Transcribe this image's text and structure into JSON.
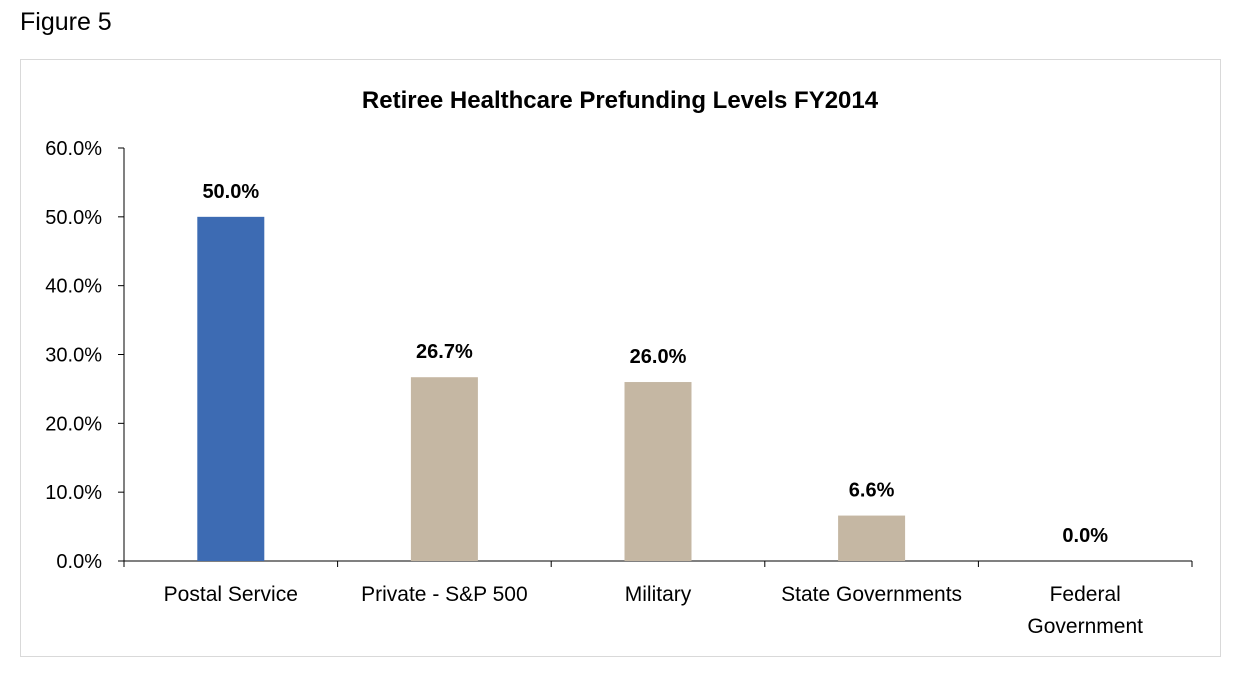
{
  "figure_label": "Figure 5",
  "chart_data": {
    "type": "bar",
    "title": "Retiree Healthcare Prefunding Levels FY2014",
    "xlabel": "",
    "ylabel": "",
    "categories": [
      [
        "Postal Service"
      ],
      [
        "Private - S&P 500"
      ],
      [
        "Military"
      ],
      [
        "State Governments"
      ],
      [
        "Federal",
        "Government"
      ]
    ],
    "values": [
      50.0,
      26.7,
      26.0,
      6.6,
      0.0
    ],
    "data_labels": [
      "50.0%",
      "26.7%",
      "26.0%",
      "6.6%",
      "0.0%"
    ],
    "colors": [
      "#3d6bb3",
      "#c5b7a3",
      "#c5b7a3",
      "#c5b7a3",
      "#c5b7a3"
    ],
    "ylim": [
      0,
      60
    ],
    "yticks": [
      0,
      10,
      20,
      30,
      40,
      50,
      60
    ],
    "ytick_labels": [
      "0.0%",
      "10.0%",
      "20.0%",
      "30.0%",
      "40.0%",
      "50.0%",
      "60.0%"
    ],
    "grid": false,
    "legend": "none"
  }
}
